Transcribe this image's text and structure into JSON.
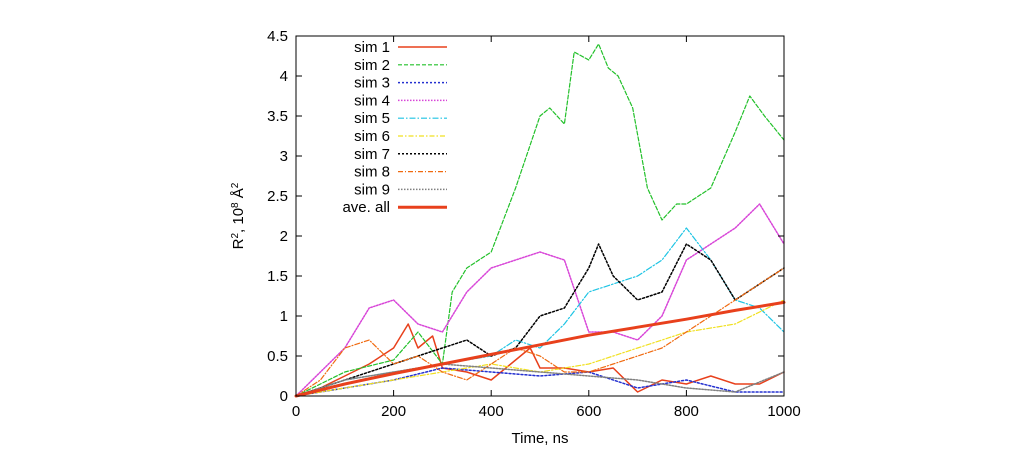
{
  "chart_data": {
    "type": "line",
    "title": "",
    "xlabel": "Time, ns",
    "ylabel": {
      "base": "R",
      "sup1": "2",
      "mid": ", 10",
      "sup2": "8",
      "unit": " Å",
      "sup3": "2"
    },
    "xlim": [
      0,
      1000
    ],
    "ylim": [
      0,
      4.5
    ],
    "xticks": [
      0,
      200,
      400,
      600,
      800,
      1000
    ],
    "yticks": [
      0,
      0.5,
      1,
      1.5,
      2,
      2.5,
      3,
      3.5,
      4,
      4.5
    ],
    "xtick_labels": [
      "0",
      "200",
      "400",
      "600",
      "800",
      "1000"
    ],
    "ytick_labels": [
      "0",
      "0.5",
      "1",
      "1.5",
      "2",
      "2.5",
      "3",
      "3.5",
      "4",
      "4.5"
    ],
    "grid": false,
    "legend_position": "top-left",
    "series": [
      {
        "name": "sim 1",
        "color": "#e8401c",
        "dash": "",
        "width": 1.5,
        "x": [
          0,
          50,
          100,
          150,
          200,
          230,
          250,
          280,
          300,
          350,
          400,
          450,
          480,
          500,
          550,
          600,
          650,
          700,
          750,
          800,
          850,
          900,
          950,
          1000
        ],
        "y": [
          0,
          0.1,
          0.25,
          0.4,
          0.6,
          0.9,
          0.6,
          0.75,
          0.35,
          0.3,
          0.2,
          0.45,
          0.6,
          0.35,
          0.35,
          0.3,
          0.35,
          0.05,
          0.2,
          0.15,
          0.25,
          0.15,
          0.15,
          0.3
        ]
      },
      {
        "name": "sim 2",
        "color": "#22c02a",
        "dash": "4 2",
        "width": 1.2,
        "x": [
          0,
          100,
          200,
          250,
          300,
          320,
          350,
          400,
          450,
          500,
          520,
          550,
          570,
          600,
          620,
          640,
          660,
          690,
          720,
          750,
          780,
          800,
          850,
          900,
          930,
          960,
          1000
        ],
        "y": [
          0,
          0.3,
          0.45,
          0.8,
          0.4,
          1.3,
          1.6,
          1.8,
          2.6,
          3.5,
          3.6,
          3.4,
          4.3,
          4.2,
          4.4,
          4.1,
          4.0,
          3.6,
          2.6,
          2.2,
          2.4,
          2.4,
          2.6,
          3.3,
          3.75,
          3.5,
          3.2
        ]
      },
      {
        "name": "sim 3",
        "color": "#2430d0",
        "dash": "2 2",
        "width": 1.5,
        "x": [
          0,
          100,
          200,
          300,
          400,
          500,
          600,
          700,
          800,
          900,
          1000
        ],
        "y": [
          0,
          0.1,
          0.2,
          0.35,
          0.3,
          0.25,
          0.3,
          0.1,
          0.2,
          0.05,
          0.05
        ]
      },
      {
        "name": "sim 4",
        "color": "#d846d8",
        "dash": "1.5 1.5",
        "width": 1.5,
        "x": [
          0,
          100,
          150,
          200,
          250,
          300,
          350,
          400,
          450,
          500,
          550,
          600,
          650,
          700,
          750,
          800,
          850,
          900,
          950,
          1000
        ],
        "y": [
          0,
          0.6,
          1.1,
          1.2,
          0.9,
          0.8,
          1.3,
          1.6,
          1.7,
          1.8,
          1.7,
          0.8,
          0.8,
          0.7,
          1.0,
          1.7,
          1.9,
          2.1,
          2.4,
          1.9
        ]
      },
      {
        "name": "sim 5",
        "color": "#1ec4e4",
        "dash": "6 2 1.5 2",
        "width": 1.2,
        "x": [
          0,
          100,
          200,
          300,
          400,
          450,
          500,
          550,
          600,
          650,
          700,
          750,
          800,
          850,
          900,
          950,
          1000
        ],
        "y": [
          0,
          0.2,
          0.3,
          0.4,
          0.5,
          0.7,
          0.6,
          0.9,
          1.3,
          1.4,
          1.5,
          1.7,
          2.1,
          1.7,
          1.2,
          1.1,
          0.8
        ]
      },
      {
        "name": "sim 6",
        "color": "#f0e020",
        "dash": "5 2 1.5 2",
        "width": 1.2,
        "x": [
          0,
          100,
          200,
          300,
          400,
          500,
          600,
          700,
          800,
          900,
          1000
        ],
        "y": [
          0,
          0.1,
          0.2,
          0.3,
          0.4,
          0.3,
          0.4,
          0.6,
          0.8,
          0.9,
          1.2
        ]
      },
      {
        "name": "sim 7",
        "color": "#000000",
        "dash": "2 2",
        "width": 1.5,
        "x": [
          0,
          100,
          200,
          300,
          350,
          400,
          450,
          500,
          550,
          600,
          620,
          650,
          700,
          750,
          800,
          850,
          900,
          950,
          1000
        ],
        "y": [
          0,
          0.2,
          0.4,
          0.6,
          0.7,
          0.5,
          0.6,
          1.0,
          1.1,
          1.6,
          1.9,
          1.5,
          1.2,
          1.3,
          1.9,
          1.7,
          1.2,
          1.4,
          1.6
        ]
      },
      {
        "name": "sim 8",
        "color": "#f06a10",
        "dash": "5 2 1 2",
        "width": 1.2,
        "x": [
          0,
          50,
          100,
          150,
          200,
          250,
          300,
          350,
          400,
          450,
          500,
          550,
          600,
          650,
          700,
          750,
          800,
          850,
          900,
          950,
          1000
        ],
        "y": [
          0,
          0.2,
          0.6,
          0.7,
          0.4,
          0.5,
          0.3,
          0.2,
          0.4,
          0.6,
          0.5,
          0.3,
          0.3,
          0.4,
          0.5,
          0.6,
          0.8,
          1.0,
          1.2,
          1.4,
          1.6
        ]
      },
      {
        "name": "sim 9",
        "color": "#808080",
        "dash": "1.5 1.5",
        "width": 1.5,
        "x": [
          0,
          100,
          200,
          300,
          400,
          500,
          600,
          700,
          800,
          900,
          1000
        ],
        "y": [
          0,
          0.2,
          0.3,
          0.4,
          0.35,
          0.3,
          0.25,
          0.2,
          0.1,
          0.05,
          0.3
        ]
      },
      {
        "name": "ave. all",
        "color": "#e8401c",
        "dash": "",
        "width": 3,
        "x": [
          0,
          100,
          200,
          300,
          400,
          500,
          600,
          700,
          800,
          900,
          1000
        ],
        "y": [
          0,
          0.15,
          0.28,
          0.4,
          0.52,
          0.64,
          0.76,
          0.86,
          0.96,
          1.07,
          1.17
        ]
      }
    ]
  }
}
